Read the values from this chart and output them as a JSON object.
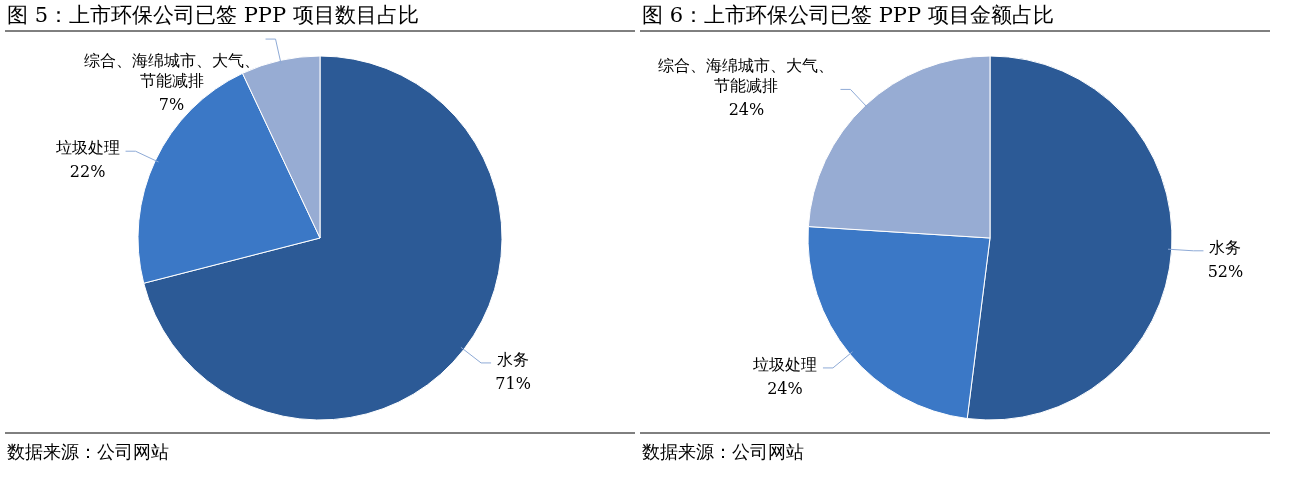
{
  "chart_data": [
    {
      "type": "pie",
      "title": "图 5：上市环保公司已签 PPP 项目数目占比",
      "categories": [
        "水务",
        "垃圾处理",
        "综合、海绵城市、大气、节能减排"
      ],
      "values": [
        71,
        22,
        7
      ],
      "value_labels": [
        "71%",
        "22%",
        "7%"
      ],
      "colors": [
        "#2c5a96",
        "#3b78c6",
        "#97acd3"
      ],
      "annotations": [
        "数据来源：公司网站"
      ]
    },
    {
      "type": "pie",
      "title": "图 6：上市环保公司已签 PPP 项目金额占比",
      "categories": [
        "水务",
        "垃圾处理",
        "综合、海绵城市、大气、节能减排"
      ],
      "values": [
        52,
        24,
        24
      ],
      "value_labels": [
        "52%",
        "24%",
        "24%"
      ],
      "colors": [
        "#2c5a96",
        "#3b78c6",
        "#97acd3"
      ],
      "annotations": [
        "数据来源：公司网站"
      ]
    }
  ]
}
